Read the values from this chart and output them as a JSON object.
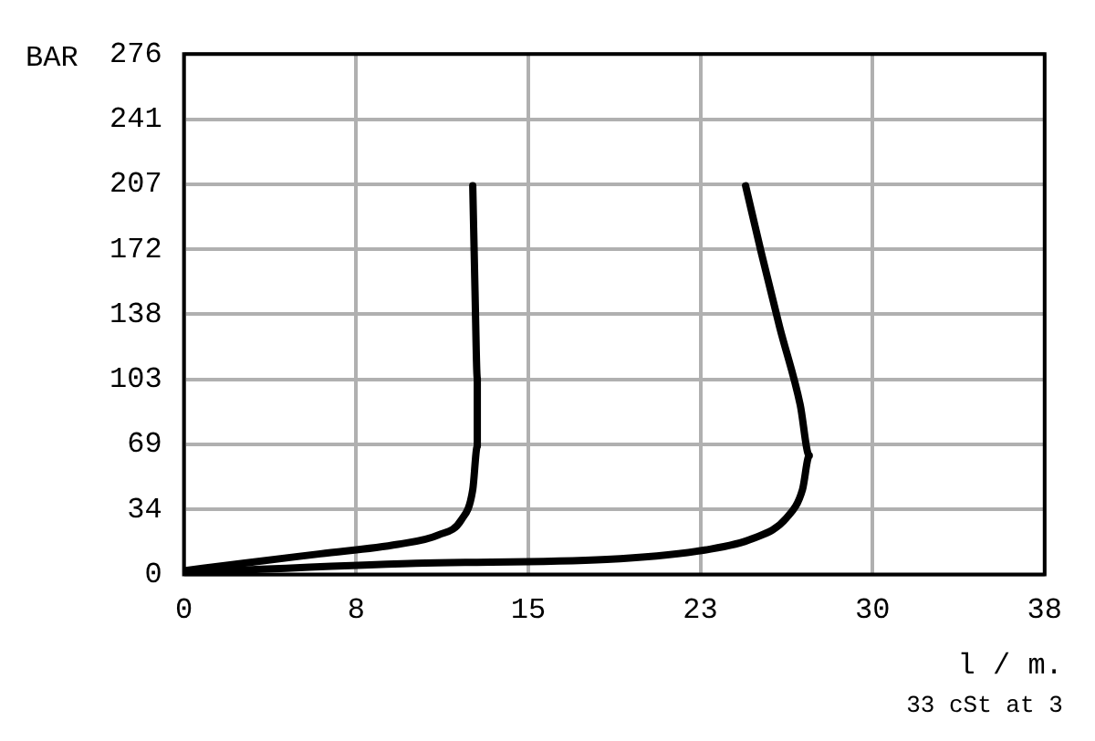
{
  "chart_data": {
    "type": "line",
    "ylabel": "BAR",
    "xlabel": "l / m.",
    "annotations": [
      "33 cSt at 3"
    ],
    "xlim": [
      0,
      37.85
    ],
    "xticks": [
      0,
      {
        "value": 7.57,
        "label": "8"
      },
      {
        "value": 15.14,
        "label": "15"
      },
      {
        "value": 22.71,
        "label": "23"
      },
      {
        "value": 30.28,
        "label": "30"
      },
      {
        "value": 37.85,
        "label": "38"
      }
    ],
    "ylim": [
      0,
      275.8
    ],
    "yticks": [
      0,
      {
        "value": 34.47,
        "label": "34"
      },
      {
        "value": 68.95,
        "label": "69"
      },
      {
        "value": 103.42,
        "label": "103"
      },
      {
        "value": 137.9,
        "label": "138"
      },
      {
        "value": 172.37,
        "label": "172"
      },
      {
        "value": 206.84,
        "label": "207"
      },
      {
        "value": 241.3,
        "label": "241"
      },
      {
        "value": 275.8,
        "label": "276"
      }
    ],
    "grid": true,
    "legend": false,
    "marker": "none",
    "line_style": "solid",
    "series": [
      {
        "color": "#000000",
        "x": [
          0,
          2.6,
          6,
          9.4,
          11.2,
          12.2,
          12.7,
          12.9,
          12.9,
          12.8,
          12.7
        ],
        "values": [
          2,
          6,
          11,
          16,
          21,
          29,
          45,
          68,
          104,
          150,
          206
        ]
      },
      {
        "color": "#000000",
        "x": [
          0,
          10.2,
          18.6,
          22.9,
          25,
          26.5,
          27.2,
          27.5,
          27.1,
          26.2,
          25.4,
          24.7
        ],
        "values": [
          1,
          6,
          8,
          13,
          19,
          30,
          45,
          63,
          90,
          131,
          170,
          206
        ]
      }
    ]
  }
}
